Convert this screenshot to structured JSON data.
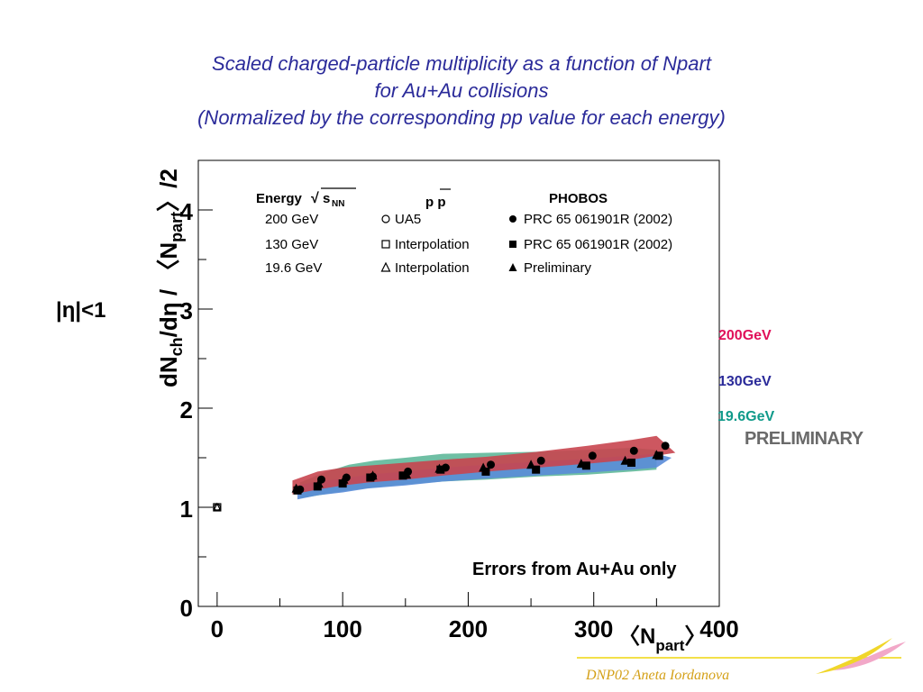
{
  "title": {
    "line1": "Scaled charged-particle multiplicity as a function of Npart",
    "line2": "for Au+Au collisions",
    "line3": "(Normalized by the corresponding pp value for each energy)"
  },
  "eta_cut": "|η|<1",
  "errors_note": "Errors from Au+Au only",
  "preliminary": "PRELIMINARY",
  "energy_labels": [
    {
      "text": "200GeV",
      "color": "#e0105a"
    },
    {
      "text": "130GeV",
      "color": "#2b2b9a"
    },
    {
      "text": "19.6GeV",
      "color": "#109a8a"
    }
  ],
  "footer": "DNP02   Aneta Iordanova",
  "legend": {
    "col1_header": "Energy",
    "col1_sqrt": "s",
    "col1_sqrt_sub": "NN",
    "col2_header": "p p",
    "col3_header": "PHOBOS",
    "rows": [
      {
        "energy": "200 GeV",
        "pp_marker": "open-circle",
        "pp_label": "UA5",
        "au_marker": "filled-circle",
        "au_label": "PRC 65 061901R (2002)"
      },
      {
        "energy": "130 GeV",
        "pp_marker": "open-square",
        "pp_label": "Interpolation",
        "au_marker": "filled-square",
        "au_label": "PRC 65 061901R (2002)"
      },
      {
        "energy": "19.6 GeV",
        "pp_marker": "open-triangle",
        "pp_label": "Interpolation",
        "au_marker": "filled-triangle",
        "au_label": "Preliminary"
      }
    ]
  },
  "chart_data": {
    "type": "scatter",
    "xlabel": "〈N_part〉",
    "ylabel": "dN_ch/dη / 〈N_part〉/2",
    "xlim": [
      -15,
      400
    ],
    "ylim": [
      0,
      4.5
    ],
    "x_ticks": [
      0,
      100,
      200,
      300,
      400
    ],
    "y_ticks": [
      0,
      1,
      2,
      3,
      4
    ],
    "series": [
      {
        "energy": "200 GeV",
        "marker": "filled-circle",
        "color": "#000000",
        "band_color": "#c8454f",
        "x": [
          66,
          83,
          103,
          124,
          152,
          182,
          218,
          258,
          299,
          332,
          357
        ],
        "y": [
          1.18,
          1.28,
          1.3,
          1.31,
          1.36,
          1.4,
          1.43,
          1.47,
          1.52,
          1.57,
          1.62
        ],
        "band_upper": [
          1.27,
          1.36,
          1.4,
          1.42,
          1.45,
          1.48,
          1.51,
          1.56,
          1.62,
          1.68,
          1.72,
          1.55
        ],
        "band_lower": [
          1.13,
          1.18,
          1.22,
          1.25,
          1.28,
          1.32,
          1.36,
          1.4,
          1.44,
          1.48,
          1.52,
          1.55
        ],
        "band_x": [
          60,
          80,
          100,
          120,
          150,
          180,
          215,
          255,
          295,
          330,
          350,
          365
        ]
      },
      {
        "energy": "130 GeV",
        "marker": "filled-square",
        "color": "#000000",
        "band_color": "#5a8cd8",
        "x": [
          64,
          80,
          100,
          122,
          148,
          178,
          214,
          254,
          294,
          330,
          352
        ],
        "y": [
          1.17,
          1.21,
          1.24,
          1.3,
          1.32,
          1.38,
          1.36,
          1.38,
          1.42,
          1.45,
          1.52
        ],
        "band_upper": [
          1.22,
          1.26,
          1.29,
          1.33,
          1.36,
          1.4,
          1.43,
          1.46,
          1.49,
          1.52,
          1.54,
          1.5
        ],
        "band_lower": [
          1.08,
          1.12,
          1.15,
          1.19,
          1.22,
          1.26,
          1.29,
          1.32,
          1.35,
          1.38,
          1.4,
          1.5
        ],
        "band_x": [
          64,
          80,
          100,
          120,
          150,
          180,
          215,
          255,
          295,
          330,
          350,
          362
        ]
      },
      {
        "energy": "19.6 GeV",
        "marker": "filled-triangle",
        "color": "#000000",
        "band_color": "#5fb89a",
        "x": [
          63,
          81,
          101,
          124,
          151,
          177,
          212,
          250,
          290,
          325,
          350
        ],
        "y": [
          1.19,
          1.24,
          1.28,
          1.32,
          1.33,
          1.39,
          1.4,
          1.43,
          1.44,
          1.47,
          1.53
        ],
        "band_upper": [
          1.25,
          1.35,
          1.43,
          1.47,
          1.5,
          1.54,
          1.55,
          1.56,
          1.58,
          1.6,
          1.58
        ],
        "band_lower": [
          1.09,
          1.13,
          1.17,
          1.2,
          1.23,
          1.26,
          1.28,
          1.31,
          1.33,
          1.36,
          1.38
        ],
        "band_x": [
          66,
          85,
          105,
          125,
          150,
          180,
          215,
          255,
          295,
          330,
          350
        ]
      },
      {
        "energy": "p p",
        "marker": "open-markers",
        "color": "#000000",
        "x": [
          0
        ],
        "y": [
          1.0
        ]
      }
    ]
  }
}
